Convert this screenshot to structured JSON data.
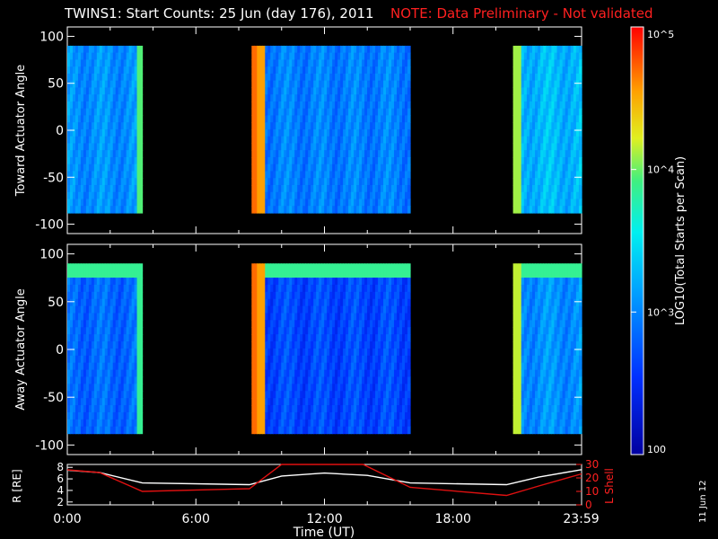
{
  "title": "TWINS1: Start Counts: 25 Jun (day 176), 2011",
  "note": "NOTE: Data Preliminary - Not validated",
  "date_stamp": "11 Jun 12",
  "colorbar": {
    "label": "LOG10(Total Starts per Scan)",
    "ticks": [
      "10^5",
      "10^4",
      "10^3",
      "100"
    ],
    "values": [
      100000,
      10000,
      1000,
      100
    ],
    "scale": "log"
  },
  "colors": {
    "background": "#000000",
    "note": "#ff2020",
    "r_line": "#ffffff",
    "lshell_line": "#e01010"
  },
  "chart_data": [
    {
      "type": "heatmap",
      "name": "toward",
      "ylabel": "Toward Actuator Angle",
      "ylim": [
        -110,
        110
      ],
      "yticks": [
        100,
        50,
        0,
        -50,
        -100
      ],
      "xlim": [
        0,
        24
      ],
      "data_ylim": [
        -88,
        90
      ],
      "segments": [
        {
          "x0": 0.0,
          "x1": 3.5,
          "level": 0.35,
          "edge_level": 0.65
        },
        {
          "x0": 8.6,
          "x1": 16.0,
          "level": 0.32,
          "edge_level": 0.85
        },
        {
          "x0": 20.8,
          "x1": 24.0,
          "level": 0.42,
          "edge_level": 0.7
        }
      ]
    },
    {
      "type": "heatmap",
      "name": "away",
      "ylabel": "Away Actuator Angle",
      "ylim": [
        -110,
        110
      ],
      "yticks": [
        100,
        50,
        0,
        -50,
        -100
      ],
      "xlim": [
        0,
        24
      ],
      "data_ylim": [
        -88,
        90
      ],
      "segments": [
        {
          "x0": 0.0,
          "x1": 3.5,
          "level": 0.28,
          "edge_level": 0.62
        },
        {
          "x0": 8.6,
          "x1": 16.0,
          "level": 0.22,
          "edge_level": 0.85
        },
        {
          "x0": 20.8,
          "x1": 24.0,
          "level": 0.35,
          "edge_level": 0.72
        }
      ]
    },
    {
      "type": "line",
      "name": "orbit",
      "ylabel": "R [RE]",
      "y2label": "L Shell",
      "xlabel": "Time (UT)",
      "xlim": [
        0,
        24
      ],
      "xticks": [
        "0:00",
        "6:00",
        "12:00",
        "18:00",
        "23:59"
      ],
      "xtick_values": [
        0,
        6,
        12,
        18,
        23.98
      ],
      "yticks": [
        2,
        4,
        6,
        8
      ],
      "ylim": [
        1.5,
        8.5
      ],
      "y2ticks": [
        0,
        10,
        20,
        30
      ],
      "y2lim": [
        0,
        30
      ],
      "series": [
        {
          "axis": "left",
          "x": [
            0,
            1.5,
            3.5,
            8.5,
            10,
            12,
            14,
            16,
            20.5,
            22,
            24
          ],
          "y": [
            7.5,
            7.1,
            5.3,
            5.0,
            6.5,
            7.0,
            6.6,
            5.3,
            5.0,
            6.3,
            7.6
          ]
        },
        {
          "axis": "right",
          "x": [
            0,
            1.5,
            3.5,
            8.5,
            10,
            13.8,
            16,
            20.5,
            22,
            24
          ],
          "y": [
            26,
            24,
            10,
            12,
            30,
            30,
            13,
            7,
            14,
            23
          ]
        }
      ]
    }
  ]
}
